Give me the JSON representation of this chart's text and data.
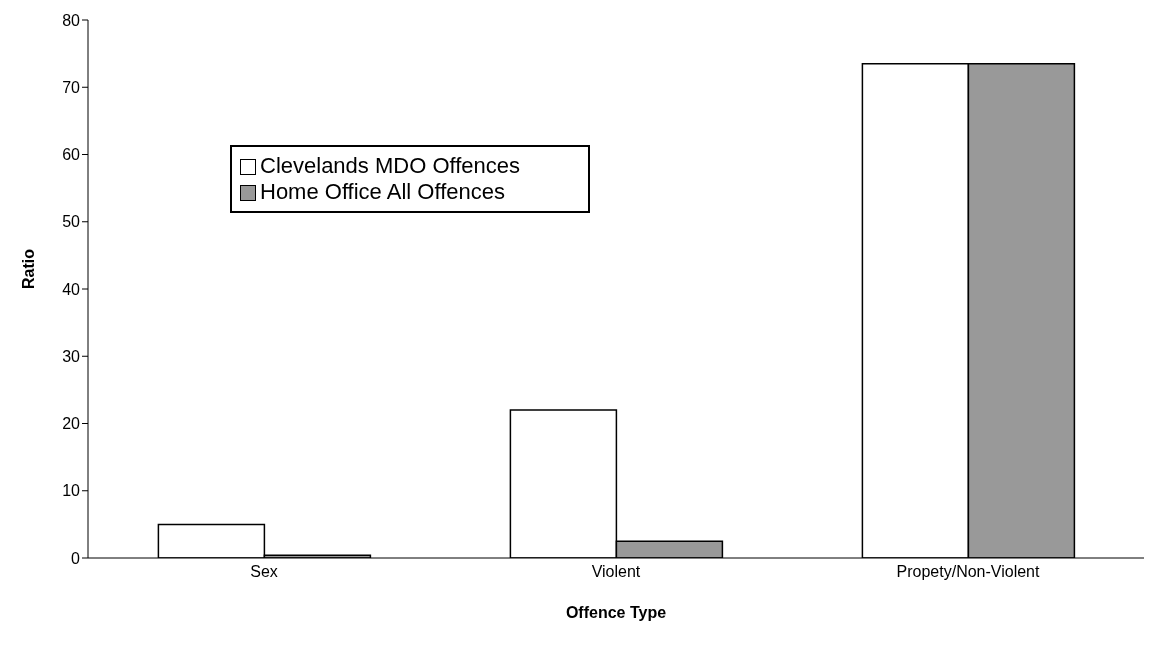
{
  "chart_data": {
    "type": "bar",
    "xlabel": "Offence Type",
    "ylabel": "Ratio",
    "categories": [
      "Sex",
      "Violent",
      "Propety/Non-Violent"
    ],
    "series": [
      {
        "name": "Clevelands MDO Offences",
        "color": "#ffffff",
        "values": [
          5,
          22,
          73.5
        ]
      },
      {
        "name": "Home Office All Offences",
        "color": "#999999",
        "values": [
          0.4,
          2.5,
          73.5
        ]
      }
    ],
    "ylim": [
      0,
      80
    ],
    "yticks": [
      0,
      10,
      20,
      30,
      40,
      50,
      60,
      70,
      80
    ],
    "grid": false,
    "legend": "top left"
  }
}
